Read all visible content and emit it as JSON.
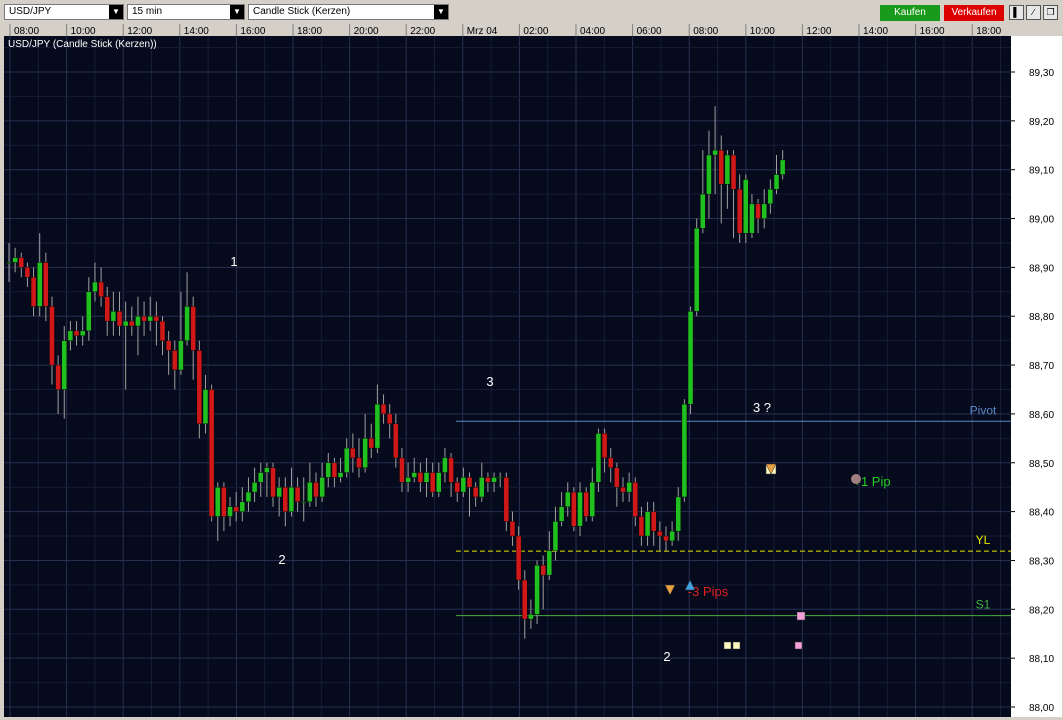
{
  "toolbar": {
    "symbol": "USD/JPY",
    "timeframe": "15 min",
    "chart_style": "Candle Stick (Kerzen)",
    "buy_label": "Kaufen",
    "sell_label": "Verkaufen",
    "colors": {
      "buy": "#1a9a1a",
      "sell": "#dd0000"
    }
  },
  "chart_data": {
    "type": "candlestick",
    "title": "USD/JPY (Candle Stick (Kerzen))",
    "time_labels": [
      "08:00",
      "10:00",
      "12:00",
      "14:00",
      "16:00",
      "18:00",
      "20:00",
      "22:00",
      "Mrz 04",
      "02:00",
      "04:00",
      "06:00",
      "08:00",
      "10:00",
      "12:00",
      "14:00",
      "16:00",
      "18:00"
    ],
    "y_ticks": [
      "89,30",
      "89,20",
      "89,10",
      "89,00",
      "88,90",
      "88,80",
      "88,70",
      "88,60",
      "88,50",
      "88,40",
      "88,30",
      "88,20",
      "88,10",
      "88,00"
    ],
    "ylim": [
      88.0,
      89.3
    ],
    "grid": true,
    "colors": {
      "background": "#050a1c",
      "grid": "#283050",
      "up": "#1fc01f",
      "down": "#d01818",
      "wick": "#a0a0a0"
    },
    "candles": [
      [
        88.91,
        88.91,
        88.95,
        88.87
      ],
      [
        88.91,
        88.92,
        88.94,
        88.89
      ],
      [
        88.92,
        88.9,
        88.93,
        88.88
      ],
      [
        88.9,
        88.88,
        88.91,
        88.86
      ],
      [
        88.88,
        88.82,
        88.9,
        88.8
      ],
      [
        88.82,
        88.91,
        88.97,
        88.8
      ],
      [
        88.91,
        88.82,
        88.93,
        88.79
      ],
      [
        88.82,
        88.7,
        88.84,
        88.66
      ],
      [
        88.7,
        88.65,
        88.72,
        88.6
      ],
      [
        88.65,
        88.75,
        88.78,
        88.59
      ],
      [
        88.75,
        88.77,
        88.79,
        88.73
      ],
      [
        88.77,
        88.76,
        88.79,
        88.74
      ],
      [
        88.76,
        88.77,
        88.8,
        88.74
      ],
      [
        88.77,
        88.85,
        88.88,
        88.75
      ],
      [
        88.85,
        88.87,
        88.91,
        88.83
      ],
      [
        88.87,
        88.84,
        88.9,
        88.82
      ],
      [
        88.84,
        88.79,
        88.86,
        88.76
      ],
      [
        88.79,
        88.81,
        88.85,
        88.76
      ],
      [
        88.81,
        88.78,
        88.85,
        88.76
      ],
      [
        88.78,
        88.79,
        88.83,
        88.65
      ],
      [
        88.79,
        88.78,
        88.82,
        88.76
      ],
      [
        88.78,
        88.8,
        88.84,
        88.72
      ],
      [
        88.8,
        88.79,
        88.83,
        88.76
      ],
      [
        88.79,
        88.8,
        88.84,
        88.77
      ],
      [
        88.8,
        88.79,
        88.83,
        88.74
      ],
      [
        88.79,
        88.75,
        88.8,
        88.72
      ],
      [
        88.75,
        88.73,
        88.77,
        88.68
      ],
      [
        88.73,
        88.69,
        88.75,
        88.65
      ],
      [
        88.69,
        88.75,
        88.85,
        88.68
      ],
      [
        88.75,
        88.82,
        88.89,
        88.74
      ],
      [
        88.82,
        88.73,
        88.84,
        88.67
      ],
      [
        88.73,
        88.58,
        88.75,
        88.55
      ],
      [
        88.58,
        88.65,
        88.68,
        88.56
      ],
      [
        88.65,
        88.39,
        88.66,
        88.38
      ],
      [
        88.39,
        88.45,
        88.46,
        88.34
      ],
      [
        88.45,
        88.39,
        88.46,
        88.36
      ],
      [
        88.39,
        88.41,
        88.43,
        88.37
      ],
      [
        88.41,
        88.4,
        88.44,
        88.38
      ],
      [
        88.4,
        88.42,
        88.45,
        88.38
      ],
      [
        88.42,
        88.44,
        88.47,
        88.4
      ],
      [
        88.44,
        88.46,
        88.49,
        88.42
      ],
      [
        88.46,
        88.48,
        88.5,
        88.43
      ],
      [
        88.48,
        88.49,
        88.5,
        88.43
      ],
      [
        88.49,
        88.43,
        88.5,
        88.41
      ],
      [
        88.43,
        88.45,
        88.47,
        88.39
      ],
      [
        88.45,
        88.4,
        88.47,
        88.37
      ],
      [
        88.4,
        88.45,
        88.49,
        88.39
      ],
      [
        88.45,
        88.42,
        88.47,
        88.4
      ],
      [
        88.42,
        88.42,
        88.47,
        88.38
      ],
      [
        88.42,
        88.46,
        88.5,
        88.41
      ],
      [
        88.46,
        88.43,
        88.48,
        88.41
      ],
      [
        88.43,
        88.47,
        88.5,
        88.42
      ],
      [
        88.47,
        88.5,
        88.52,
        88.45
      ],
      [
        88.5,
        88.47,
        88.51,
        88.45
      ],
      [
        88.47,
        88.48,
        88.51,
        88.46
      ],
      [
        88.48,
        88.53,
        88.55,
        88.47
      ],
      [
        88.53,
        88.51,
        88.56,
        88.48
      ],
      [
        88.51,
        88.49,
        88.55,
        88.47
      ],
      [
        88.49,
        88.55,
        88.6,
        88.48
      ],
      [
        88.55,
        88.53,
        88.58,
        88.51
      ],
      [
        88.53,
        88.62,
        88.66,
        88.52
      ],
      [
        88.62,
        88.6,
        88.64,
        88.58
      ],
      [
        88.6,
        88.58,
        88.62,
        88.55
      ],
      [
        88.58,
        88.51,
        88.6,
        88.49
      ],
      [
        88.51,
        88.46,
        88.53,
        88.44
      ],
      [
        88.46,
        88.47,
        88.5,
        88.44
      ],
      [
        88.47,
        88.48,
        88.51,
        88.46
      ],
      [
        88.48,
        88.46,
        88.5,
        88.44
      ],
      [
        88.46,
        88.48,
        88.51,
        88.43
      ],
      [
        88.48,
        88.44,
        88.5,
        88.43
      ],
      [
        88.44,
        88.48,
        88.5,
        88.43
      ],
      [
        88.48,
        88.51,
        88.53,
        88.46
      ],
      [
        88.51,
        88.46,
        88.52,
        88.43
      ],
      [
        88.46,
        88.44,
        88.47,
        88.42
      ],
      [
        88.44,
        88.47,
        88.49,
        88.43
      ],
      [
        88.47,
        88.45,
        88.48,
        88.39
      ],
      [
        88.45,
        88.43,
        88.46,
        88.41
      ],
      [
        88.43,
        88.47,
        88.5,
        88.42
      ],
      [
        88.47,
        88.46,
        88.48,
        88.44
      ],
      [
        88.46,
        88.47,
        88.48,
        88.44
      ],
      [
        88.47,
        88.47,
        88.48,
        88.45
      ],
      [
        88.47,
        88.38,
        88.48,
        88.36
      ],
      [
        88.38,
        88.35,
        88.4,
        88.33
      ],
      [
        88.35,
        88.26,
        88.37,
        88.24
      ],
      [
        88.26,
        88.18,
        88.28,
        88.14
      ],
      [
        88.18,
        88.19,
        88.22,
        88.16
      ],
      [
        88.19,
        88.29,
        88.3,
        88.17
      ],
      [
        88.29,
        88.27,
        88.31,
        88.2
      ],
      [
        88.27,
        88.32,
        88.36,
        88.26
      ],
      [
        88.32,
        88.38,
        88.41,
        88.3
      ],
      [
        88.38,
        88.41,
        88.44,
        88.37
      ],
      [
        88.41,
        88.44,
        88.46,
        88.39
      ],
      [
        88.44,
        88.37,
        88.45,
        88.36
      ],
      [
        88.37,
        88.44,
        88.46,
        88.35
      ],
      [
        88.44,
        88.39,
        88.45,
        88.38
      ],
      [
        88.39,
        88.46,
        88.49,
        88.38
      ],
      [
        88.46,
        88.56,
        88.57,
        88.44
      ],
      [
        88.56,
        88.51,
        88.57,
        88.48
      ],
      [
        88.51,
        88.49,
        88.53,
        88.46
      ],
      [
        88.49,
        88.45,
        88.5,
        88.41
      ],
      [
        88.45,
        88.44,
        88.47,
        88.42
      ],
      [
        88.44,
        88.46,
        88.48,
        88.42
      ],
      [
        88.46,
        88.39,
        88.47,
        88.37
      ],
      [
        88.39,
        88.35,
        88.41,
        88.33
      ],
      [
        88.35,
        88.4,
        88.42,
        88.33
      ],
      [
        88.4,
        88.36,
        88.42,
        88.33
      ],
      [
        88.36,
        88.35,
        88.38,
        88.32
      ],
      [
        88.35,
        88.34,
        88.37,
        88.32
      ],
      [
        88.34,
        88.36,
        88.38,
        88.33
      ],
      [
        88.36,
        88.43,
        88.45,
        88.34
      ],
      [
        88.43,
        88.62,
        88.63,
        88.42
      ],
      [
        88.62,
        88.81,
        88.82,
        88.6
      ],
      [
        88.81,
        88.98,
        89.0,
        88.8
      ],
      [
        88.98,
        89.05,
        89.14,
        88.97
      ],
      [
        89.05,
        89.13,
        89.18,
        89.0
      ],
      [
        89.13,
        89.14,
        89.23,
        89.05
      ],
      [
        89.14,
        89.07,
        89.17,
        88.99
      ],
      [
        89.07,
        89.13,
        89.14,
        89.02
      ],
      [
        89.13,
        89.06,
        89.14,
        88.96
      ],
      [
        89.06,
        88.97,
        89.09,
        88.95
      ],
      [
        88.97,
        89.08,
        89.09,
        88.95
      ],
      [
        88.97,
        89.03,
        89.05,
        88.96
      ],
      [
        89.03,
        89.0,
        89.04,
        88.97
      ],
      [
        89.0,
        89.03,
        89.06,
        88.98
      ],
      [
        89.03,
        89.06,
        89.08,
        89.01
      ],
      [
        89.06,
        89.09,
        89.13,
        89.05
      ],
      [
        89.09,
        89.12,
        89.14,
        89.08
      ]
    ],
    "levels": [
      {
        "label": "Pivot",
        "value": 88.585,
        "color": "#5a88c8",
        "style": "solid"
      },
      {
        "label": "YL",
        "value": 88.319,
        "color": "#e6e600",
        "style": "dashed"
      },
      {
        "label": "S1",
        "value": 88.187,
        "color": "#3fb03f",
        "style": "solid"
      }
    ],
    "annotations": [
      {
        "text": "1",
        "color": "#ffffff"
      },
      {
        "text": "2",
        "color": "#ffffff"
      },
      {
        "text": "3",
        "color": "#ffffff"
      },
      {
        "text": "3 ?",
        "color": "#ffffff"
      },
      {
        "text": "2",
        "color": "#ffffff"
      },
      {
        "text": "-3 Pips",
        "color": "#e02020"
      },
      {
        "text": "+1 Pip",
        "color": "#20d020"
      }
    ]
  }
}
